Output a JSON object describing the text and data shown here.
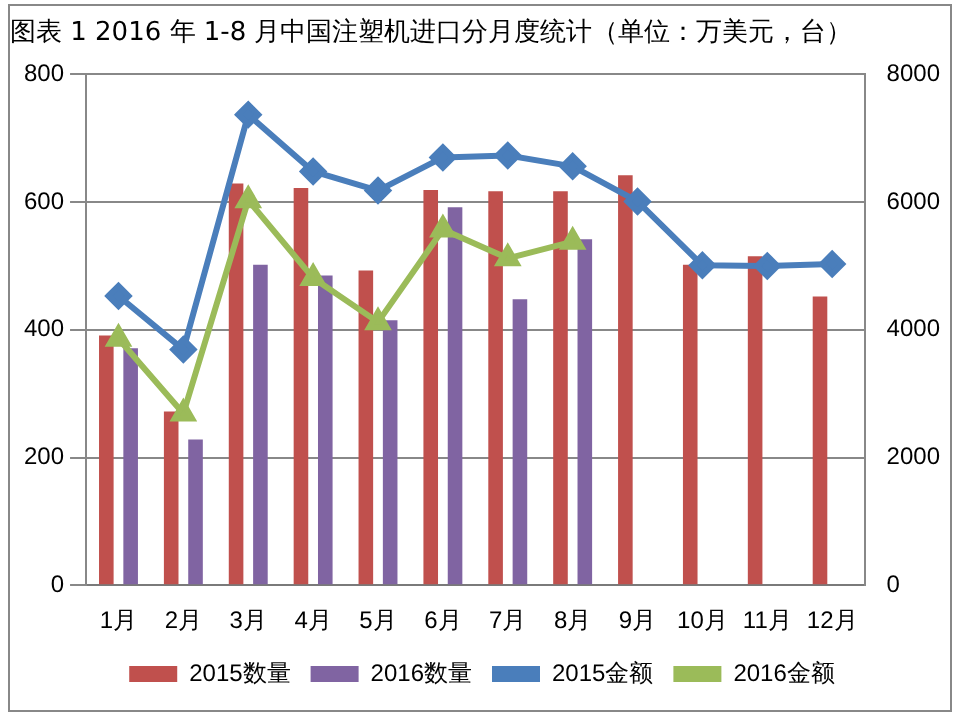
{
  "chart_data": {
    "type": "bar",
    "title": "图表 1   2016 年 1-8 月中国注塑机进口分月度统计（单位：万美元，台）",
    "categories": [
      "1月",
      "2月",
      "3月",
      "4月",
      "5月",
      "6月",
      "7月",
      "8月",
      "9月",
      "10月",
      "11月",
      "12月"
    ],
    "series": [
      {
        "name": "2015数量",
        "color": "#c0504d",
        "values": [
          391,
          272,
          629,
          622,
          493,
          619,
          617,
          617,
          642,
          502,
          515,
          452
        ]
      },
      {
        "name": "2016数量",
        "color": "#8064a2",
        "values": [
          371,
          228,
          502,
          485,
          415,
          592,
          448,
          542,
          null,
          null,
          null,
          null
        ]
      },
      {
        "name": "2015金额",
        "type": "line",
        "axis": "y2",
        "marker": "diamond",
        "color": "#4a7ebb",
        "values": [
          4530,
          3690,
          7370,
          6480,
          6180,
          6700,
          6730,
          6560,
          6010,
          5010,
          5000,
          5030
        ]
      },
      {
        "name": "2016金额",
        "type": "line",
        "axis": "y2",
        "marker": "triangle",
        "color": "#9bbb59",
        "values": [
          3860,
          2690,
          6030,
          4810,
          4120,
          5570,
          5120,
          5380,
          null,
          null,
          null,
          null
        ]
      }
    ],
    "ylim": [
      0,
      800
    ],
    "yticks": [
      0,
      200,
      400,
      600,
      800
    ],
    "y2lim": [
      0,
      8000
    ],
    "y2ticks": [
      0,
      2000,
      4000,
      6000,
      8000
    ],
    "grid": "y",
    "legend": "bottom"
  }
}
